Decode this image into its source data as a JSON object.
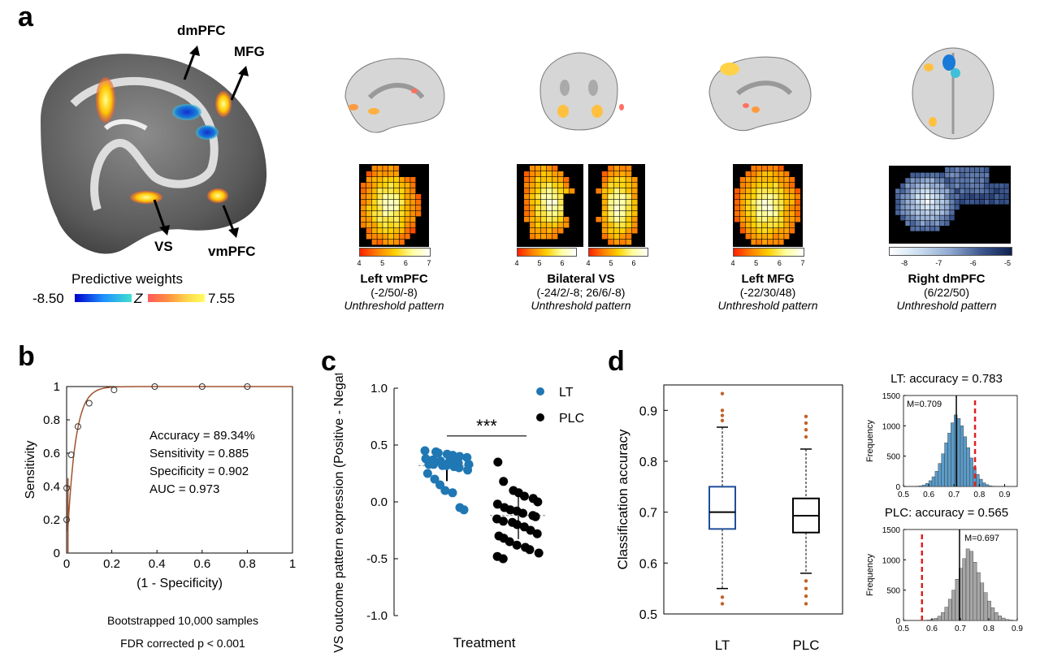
{
  "panel_a": {
    "letter": "a",
    "brain_labels": {
      "dmpfc": "dmPFC",
      "mfg": "MFG",
      "vs": "VS",
      "vmpfc": "vmPFC"
    },
    "colorbar": {
      "title": "Predictive weights",
      "min": "-8.50",
      "mid": "Z",
      "max": "7.55"
    },
    "regions": [
      {
        "title": "Left vmPFC",
        "coords": "(-2/50/-8)",
        "note": "Unthreshold pattern",
        "ticks": [
          "4",
          "5",
          "6",
          "7"
        ]
      },
      {
        "title": "Bilateral VS",
        "coords": "(-24/2/-8; 26/6/-8)",
        "note": "Unthreshold pattern",
        "ticks_left": [
          "4",
          "5",
          "6"
        ],
        "ticks_right": [
          "4",
          "5",
          "6"
        ]
      },
      {
        "title": "Left MFG",
        "coords": "(-22/30/48)",
        "note": "Unthreshold pattern",
        "ticks": [
          "4",
          "5",
          "6",
          "7"
        ]
      },
      {
        "title": "Right dmPFC",
        "coords": "(6/22/50)",
        "note": "Unthreshold pattern",
        "ticks": [
          "-8",
          "-7",
          "-6",
          "-5"
        ]
      }
    ]
  },
  "panel_b": {
    "letter": "b",
    "stats": [
      "Accuracy = 89.34%",
      "Sensitivity = 0.885",
      "Specificity = 0.902",
      "AUC = 0.973"
    ],
    "footnote1": "Bootstrapped 10,000 samples",
    "footnote2": "FDR corrected p < 0.001",
    "colors": {
      "curve": "#a0522d"
    },
    "chart_data": {
      "type": "line",
      "xlabel": "(1 - Specificity)",
      "ylabel": "Sensitivity",
      "xlim": [
        0,
        1
      ],
      "ylim": [
        0,
        1
      ],
      "xticks": [
        "0",
        "0.2",
        "0.4",
        "0.6",
        "0.8",
        "1"
      ],
      "yticks": [
        "0",
        "0.2",
        "0.4",
        "0.6",
        "0.8",
        "1"
      ],
      "points": [
        [
          0.0,
          0.2
        ],
        [
          0.0,
          0.39
        ],
        [
          0.02,
          0.59
        ],
        [
          0.05,
          0.76
        ],
        [
          0.1,
          0.9
        ],
        [
          0.21,
          0.98
        ],
        [
          0.39,
          1.0
        ],
        [
          0.6,
          1.0
        ],
        [
          0.8,
          1.0
        ]
      ]
    }
  },
  "panel_c": {
    "letter": "c",
    "significance": "***",
    "colors": {
      "LT": "#1f77b4",
      "PLC": "#000000"
    },
    "chart_data": {
      "type": "scatter",
      "ylabel": "VS outcome pattern expression (Positive - Negative)",
      "xlabel": "Treatment",
      "ylim": [
        -1,
        1
      ],
      "yticks": [
        "-1.0",
        "-0.5",
        "0.0",
        "0.5",
        "1.0"
      ],
      "series": [
        {
          "name": "LT",
          "mean": 0.32,
          "values": [
            0.45,
            0.44,
            0.43,
            0.42,
            0.41,
            0.4,
            0.39,
            0.38,
            0.37,
            0.36,
            0.35,
            0.34,
            0.34,
            0.33,
            0.33,
            0.33,
            0.32,
            0.32,
            0.31,
            0.3,
            0.28,
            0.25,
            0.2,
            0.15,
            0.1,
            0.08,
            -0.05,
            -0.07
          ]
        },
        {
          "name": "PLC",
          "mean": -0.12,
          "values": [
            0.35,
            0.18,
            0.1,
            0.08,
            0.05,
            0.03,
            0.0,
            -0.02,
            -0.05,
            -0.07,
            -0.08,
            -0.1,
            -0.12,
            -0.13,
            -0.15,
            -0.17,
            -0.18,
            -0.2,
            -0.22,
            -0.25,
            -0.28,
            -0.3,
            -0.32,
            -0.35,
            -0.38,
            -0.4,
            -0.42,
            -0.45,
            -0.48,
            -0.5
          ]
        }
      ]
    }
  },
  "panel_d": {
    "letter": "d",
    "colors": {
      "LT": "#1f4e99",
      "PLC": "#000000",
      "outlier": "#c0632b",
      "threshold": "#e02020",
      "hist_lt": "#5b9bc8",
      "hist_plc": "#a6a6a6"
    },
    "chart_data": [
      {
        "type": "box",
        "ylabel": "Classification accuracy",
        "ylim": [
          0.5,
          0.95
        ],
        "yticks": [
          "0.5",
          "0.6",
          "0.7",
          "0.8",
          "0.9"
        ],
        "categories": [
          "LT",
          "PLC"
        ],
        "boxes": [
          {
            "name": "LT",
            "q1": 0.667,
            "median": 0.7,
            "q3": 0.75,
            "whisker_low": 0.55,
            "whisker_high": 0.867,
            "outliers": [
              0.933,
              0.9,
              0.89,
              0.88,
              0.533,
              0.52
            ]
          },
          {
            "name": "PLC",
            "q1": 0.66,
            "median": 0.693,
            "q3": 0.727,
            "whisker_low": 0.58,
            "whisker_high": 0.824,
            "outliers": [
              0.888,
              0.875,
              0.862,
              0.848,
              0.565,
              0.55,
              0.535,
              0.52
            ]
          }
        ]
      },
      {
        "type": "bar",
        "title": "LT: accuracy = 0.783",
        "ylabel": "Frequency",
        "annotation": "M=0.709",
        "mean": 0.709,
        "threshold": 0.783,
        "xlim": [
          0.5,
          0.95
        ],
        "ylim": [
          0,
          1500
        ],
        "xticks": [
          "0.5",
          "0.6",
          "0.7",
          "0.8",
          "0.9"
        ],
        "yticks": [
          "0",
          "500",
          "1000",
          "1500"
        ],
        "bin_start": 0.55,
        "bin_width": 0.0125,
        "values": [
          5,
          12,
          25,
          50,
          95,
          160,
          250,
          380,
          540,
          720,
          880,
          1050,
          1180,
          1120,
          1000,
          820,
          640,
          470,
          320,
          200,
          120,
          60,
          30,
          12,
          5
        ]
      },
      {
        "type": "bar",
        "title": "PLC: accuracy = 0.565",
        "ylabel": "Frequency",
        "annotation": "M=0.697",
        "mean": 0.697,
        "threshold": 0.565,
        "xlim": [
          0.5,
          0.9
        ],
        "ylim": [
          0,
          1500
        ],
        "xticks": [
          "0.5",
          "0.6",
          "0.7",
          "0.8",
          "0.9"
        ],
        "yticks": [
          "0",
          "500",
          "1000",
          "1500"
        ],
        "bin_start": 0.57,
        "bin_width": 0.0125,
        "values": [
          3,
          8,
          18,
          35,
          70,
          130,
          220,
          350,
          500,
          680,
          860,
          1020,
          1180,
          1140,
          960,
          790,
          620,
          460,
          320,
          210,
          130,
          75,
          40,
          18,
          8,
          3
        ]
      }
    ]
  }
}
